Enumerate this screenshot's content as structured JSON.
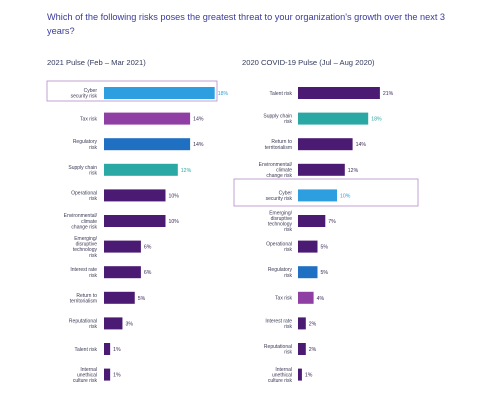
{
  "question": "Which of the following risks poses the greatest threat to your organization's growth over the next 3 years?",
  "colors": {
    "purple": "#4b1a72",
    "teal": "#2aa9a4",
    "blue": "#1f6fc2",
    "lightblue": "#2d9fe0",
    "magenta": "#8f3ea3",
    "highlight_border": "#b48ac8"
  },
  "chart_data": [
    {
      "type": "bar",
      "orientation": "horizontal",
      "title": "2021 Pulse (Feb – Mar 2021)",
      "unit": "%",
      "highlighted": "Cyber security risk",
      "categories": [
        "Cyber security risk",
        "Tax risk",
        "Regulatory risk",
        "Supply chain risk",
        "Operational risk",
        "Environmental/ climate change risk",
        "Emerging/ disruptive technology risk",
        "Interest rate risk",
        "Return to territorialism",
        "Reputational risk",
        "Talent risk",
        "Internal unethical culture risk"
      ],
      "values": [
        18,
        14,
        14,
        12,
        10,
        10,
        6,
        6,
        5,
        3,
        1,
        1
      ],
      "labels": [
        "18%",
        "14%",
        "14%",
        "12%",
        "10%",
        "10%",
        "6%",
        "6%",
        "5%",
        "3%",
        "1%",
        "1%"
      ],
      "bar_colors": [
        "lightblue",
        "magenta",
        "blue",
        "teal",
        "purple",
        "purple",
        "purple",
        "purple",
        "purple",
        "purple",
        "purple",
        "purple"
      ]
    },
    {
      "type": "bar",
      "orientation": "horizontal",
      "title": "2020 COVID-19 Pulse (Jul – Aug 2020)",
      "unit": "%",
      "highlighted": "Cyber security risk",
      "categories": [
        "Talent risk",
        "Supply chain risk",
        "Return to territorialism",
        "Environmental/ climate change risk",
        "Cyber security risk",
        "Emerging/ disruptive technology risk",
        "Operational risk",
        "Regulatory risk",
        "Tax risk",
        "Interest rate risk",
        "Reputational risk",
        "Internal unethical culture risk"
      ],
      "values": [
        21,
        18,
        14,
        12,
        10,
        7,
        5,
        5,
        4,
        2,
        2,
        1
      ],
      "labels": [
        "21%",
        "18%",
        "14%",
        "12%",
        "10%",
        "7%",
        "5%",
        "5%",
        "4%",
        "2%",
        "2%",
        "1%"
      ],
      "bar_colors": [
        "purple",
        "teal",
        "purple",
        "purple",
        "lightblue",
        "purple",
        "purple",
        "blue",
        "magenta",
        "purple",
        "purple",
        "purple"
      ]
    }
  ]
}
